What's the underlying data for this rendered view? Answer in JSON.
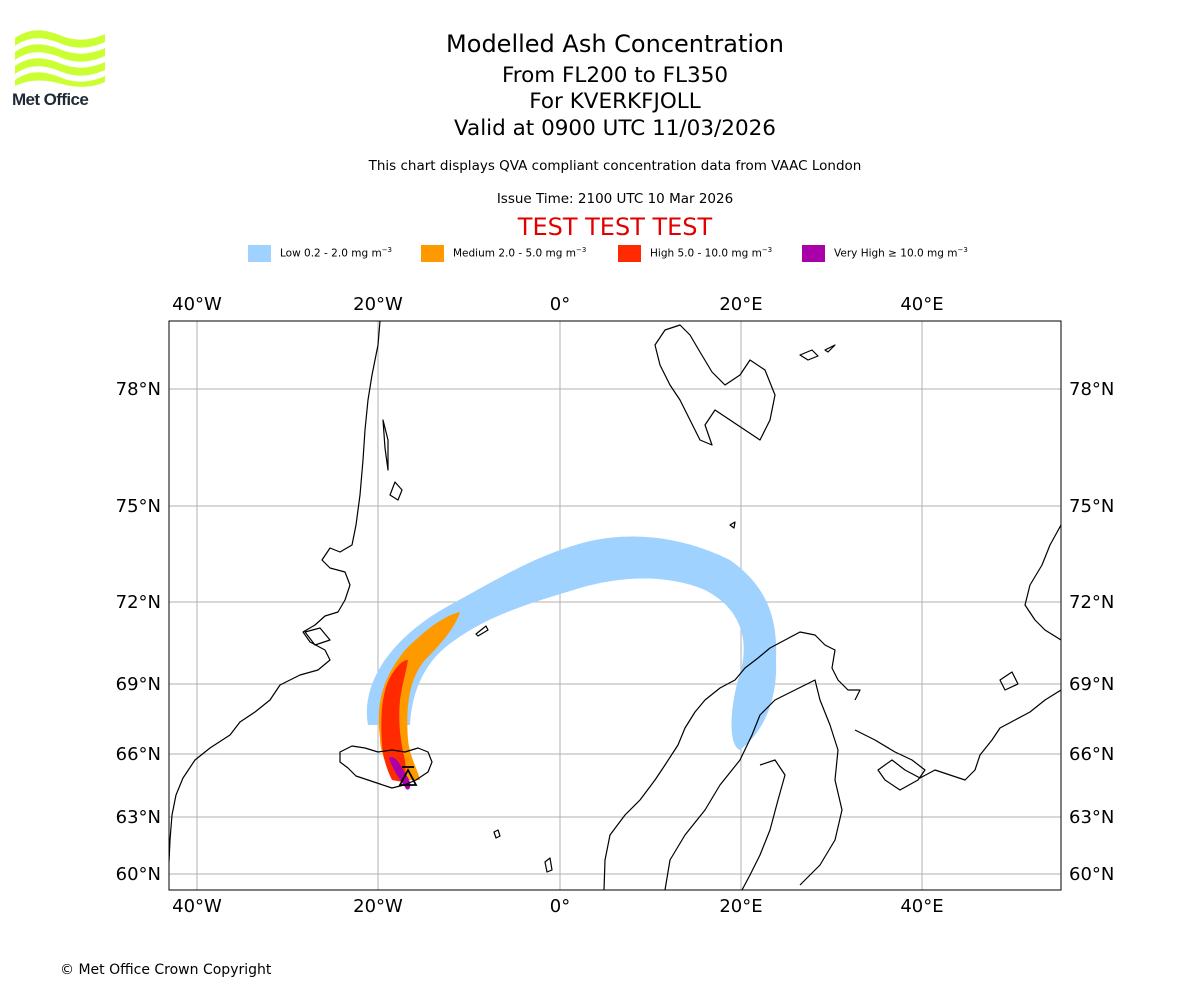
{
  "logo": {
    "text": "Met Office",
    "color": "#ccff33"
  },
  "title": {
    "line1": "Modelled Ash Concentration",
    "line2": "From FL200 to FL350",
    "line3": "For KVERKFJOLL",
    "line4": "Valid at 0900 UTC 11/03/2026"
  },
  "subtitle": "This chart displays QVA compliant concentration data from VAAC London",
  "issue_time": "Issue Time: 2100 UTC 10 Mar 2026",
  "test_banner": "TEST TEST TEST",
  "legend": [
    {
      "label": "Low 0.2 - 2.0 mg m",
      "color": "#a0d2ff"
    },
    {
      "label": "Medium 2.0 - 5.0 mg m",
      "color": "#ff9900"
    },
    {
      "label": "High 5.0 - 10.0 mg m",
      "color": "#ff2a00"
    },
    {
      "label": "Very High ≥ 10.0 mg m",
      "color": "#aa00aa"
    }
  ],
  "legend_unit_exp": "−3",
  "axes": {
    "lon_ticks": [
      "40°W",
      "20°W",
      "0°",
      "20°E",
      "40°E"
    ],
    "lat_ticks": [
      "78°N",
      "75°N",
      "72°N",
      "69°N",
      "66°N",
      "63°N",
      "60°N"
    ]
  },
  "volcano": {
    "name": "KVERKFJOLL",
    "lat": 64.65,
    "lon": -16.7
  },
  "footer": "© Met Office Crown Copyright"
}
